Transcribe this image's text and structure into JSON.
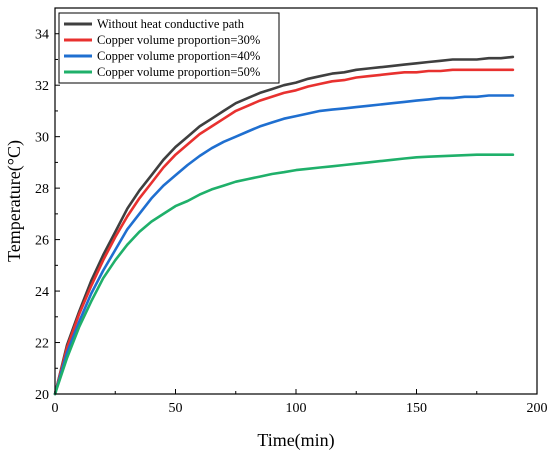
{
  "chart_data": {
    "type": "line",
    "title": "",
    "xlabel": "Time(min)",
    "ylabel": "Temperature(°C)",
    "xlim": [
      0,
      200
    ],
    "ylim": [
      20,
      35
    ],
    "xticks": [
      "0",
      "50",
      "100",
      "150",
      "200"
    ],
    "yticks": [
      "20",
      "22",
      "24",
      "26",
      "28",
      "30",
      "32",
      "34"
    ],
    "grid": false,
    "legend_position": "top-left",
    "x": [
      0,
      5,
      10,
      15,
      20,
      25,
      30,
      35,
      40,
      45,
      50,
      55,
      60,
      65,
      70,
      75,
      80,
      85,
      90,
      95,
      100,
      105,
      110,
      115,
      120,
      125,
      130,
      135,
      140,
      145,
      150,
      155,
      160,
      165,
      170,
      175,
      180,
      185,
      190
    ],
    "series": [
      {
        "name": "Without heat conductive path",
        "color": "#3f3f3f",
        "values": [
          20.0,
          21.9,
          23.2,
          24.4,
          25.4,
          26.3,
          27.2,
          27.9,
          28.5,
          29.1,
          29.6,
          30.0,
          30.4,
          30.7,
          31.0,
          31.3,
          31.5,
          31.7,
          31.85,
          32.0,
          32.1,
          32.25,
          32.35,
          32.45,
          32.5,
          32.6,
          32.65,
          32.7,
          32.75,
          32.8,
          32.85,
          32.9,
          32.95,
          33.0,
          33.0,
          33.0,
          33.05,
          33.05,
          33.1
        ]
      },
      {
        "name": "Copper volume proportion=30%",
        "color": "#e8312f",
        "values": [
          20.0,
          21.8,
          23.1,
          24.2,
          25.2,
          26.1,
          26.9,
          27.6,
          28.2,
          28.8,
          29.3,
          29.7,
          30.1,
          30.4,
          30.7,
          31.0,
          31.2,
          31.4,
          31.55,
          31.7,
          31.8,
          31.95,
          32.05,
          32.15,
          32.2,
          32.3,
          32.35,
          32.4,
          32.45,
          32.5,
          32.5,
          32.55,
          32.55,
          32.6,
          32.6,
          32.6,
          32.6,
          32.6,
          32.6
        ]
      },
      {
        "name": "Copper volume proportion=40%",
        "color": "#1f6fd0",
        "values": [
          20.0,
          21.6,
          22.8,
          23.9,
          24.8,
          25.6,
          26.4,
          27.0,
          27.6,
          28.1,
          28.5,
          28.9,
          29.25,
          29.55,
          29.8,
          30.0,
          30.2,
          30.4,
          30.55,
          30.7,
          30.8,
          30.9,
          31.0,
          31.05,
          31.1,
          31.15,
          31.2,
          31.25,
          31.3,
          31.35,
          31.4,
          31.45,
          31.5,
          31.5,
          31.55,
          31.55,
          31.6,
          31.6,
          31.6
        ]
      },
      {
        "name": "Copper volume proportion=50%",
        "color": "#1fb06a",
        "values": [
          20.0,
          21.4,
          22.6,
          23.6,
          24.5,
          25.2,
          25.8,
          26.3,
          26.7,
          27.0,
          27.3,
          27.5,
          27.75,
          27.95,
          28.1,
          28.25,
          28.35,
          28.45,
          28.55,
          28.62,
          28.7,
          28.75,
          28.8,
          28.85,
          28.9,
          28.95,
          29.0,
          29.05,
          29.1,
          29.15,
          29.2,
          29.22,
          29.24,
          29.26,
          29.28,
          29.3,
          29.3,
          29.3,
          29.3
        ]
      }
    ]
  }
}
